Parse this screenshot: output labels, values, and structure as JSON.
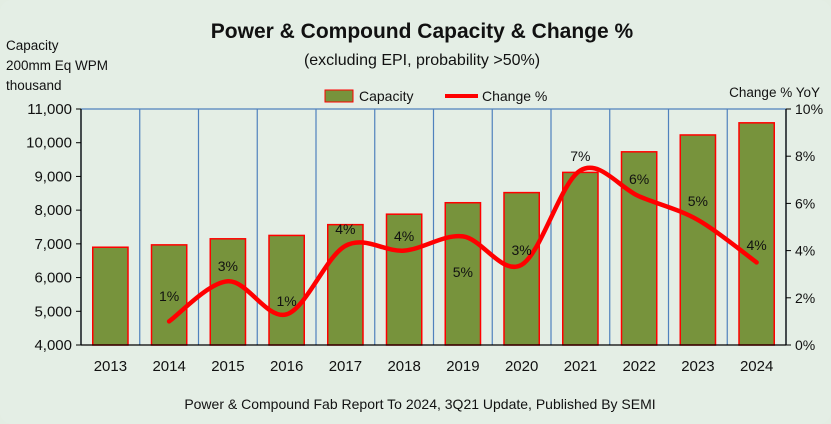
{
  "chart_data": {
    "type": "bar",
    "title": "Power & Compound Capacity & Change %",
    "subtitle": "(excluding EPI, probability >50%)",
    "ylabel_lines": [
      "Capacity",
      "200mm Eq WPM",
      "thousand"
    ],
    "y2label": "Change % YoY",
    "footer": "Power & Compound Fab Report To 2024, 3Q21 Update, Published By SEMI",
    "categories": [
      "2013",
      "2014",
      "2015",
      "2016",
      "2017",
      "2018",
      "2019",
      "2020",
      "2021",
      "2022",
      "2023",
      "2024"
    ],
    "series": [
      {
        "name": "Capacity",
        "type": "bar",
        "values": [
          6900,
          6970,
          7150,
          7250,
          7570,
          7880,
          8220,
          8520,
          9120,
          9730,
          10230,
          10590
        ]
      },
      {
        "name": "Change %",
        "type": "line",
        "values": [
          null,
          1,
          2.7,
          1.3,
          4.2,
          4,
          4.6,
          3.4,
          7.4,
          6.3,
          5.3,
          3.5
        ]
      }
    ],
    "data_labels": [
      null,
      "1%",
      "3%",
      "1%",
      "4%",
      "4%",
      "5%",
      "3%",
      "7%",
      "6%",
      "5%",
      "4%"
    ],
    "ylim": [
      4000,
      11000
    ],
    "yticks": [
      "4,000",
      "5,000",
      "6,000",
      "7,000",
      "8,000",
      "9,000",
      "10,000",
      "11,000"
    ],
    "y2lim": [
      0,
      10
    ],
    "y2ticks": [
      "0%",
      "2%",
      "4%",
      "6%",
      "8%",
      "10%"
    ],
    "grid": "vertical",
    "legend_position": "top",
    "colors": {
      "bar_fill": "#77933c",
      "bar_stroke": "#ff0000",
      "line": "#ff0000",
      "background": "#e4eee5",
      "grid": "#4f81bd"
    }
  }
}
